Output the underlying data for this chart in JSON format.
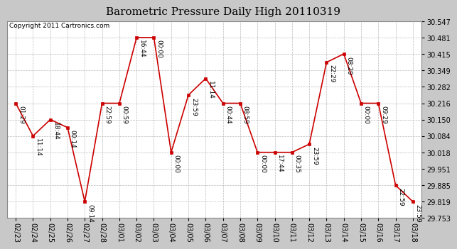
{
  "title": "Barometric Pressure Daily High 20110319",
  "copyright": "Copyright 2011 Cartronics.com",
  "x_labels": [
    "02/23",
    "02/24",
    "02/25",
    "02/26",
    "02/27",
    "02/28",
    "03/01",
    "03/02",
    "03/03",
    "03/04",
    "03/05",
    "03/06",
    "03/07",
    "03/08",
    "03/09",
    "03/10",
    "03/11",
    "03/12",
    "03/13",
    "03/14",
    "03/15",
    "03/16",
    "03/17",
    "03/18"
  ],
  "y_values": [
    30.216,
    30.084,
    30.15,
    30.118,
    29.819,
    30.216,
    30.216,
    30.481,
    30.481,
    30.018,
    30.249,
    30.316,
    30.216,
    30.216,
    30.018,
    30.018,
    30.018,
    30.051,
    30.381,
    30.415,
    30.216,
    30.216,
    29.885,
    29.819
  ],
  "time_labels": [
    "01:29",
    "11:14",
    "18:44",
    "00:14",
    "09:14",
    "22:59",
    "00:59",
    "16:44",
    "00:00",
    "00:00",
    "23:59",
    "11:14",
    "00:44",
    "08:59",
    "00:00",
    "17:44",
    "00:35",
    "23:59",
    "22:29",
    "08:29",
    "00:00",
    "09:29",
    "22:59",
    "23:59"
  ],
  "ylim_min": 29.753,
  "ylim_max": 30.547,
  "yticks": [
    29.753,
    29.819,
    29.885,
    29.951,
    30.018,
    30.084,
    30.15,
    30.216,
    30.282,
    30.349,
    30.415,
    30.481,
    30.547
  ],
  "line_color": "#cc0000",
  "marker_color": "#cc0000",
  "bg_color": "#c8c8c8",
  "plot_bg_color": "#ffffff",
  "title_fontsize": 11,
  "copyright_fontsize": 6.5,
  "label_fontsize": 6.5,
  "tick_fontsize": 7,
  "grid_color": "#bbbbbb",
  "spine_color": "#888888"
}
